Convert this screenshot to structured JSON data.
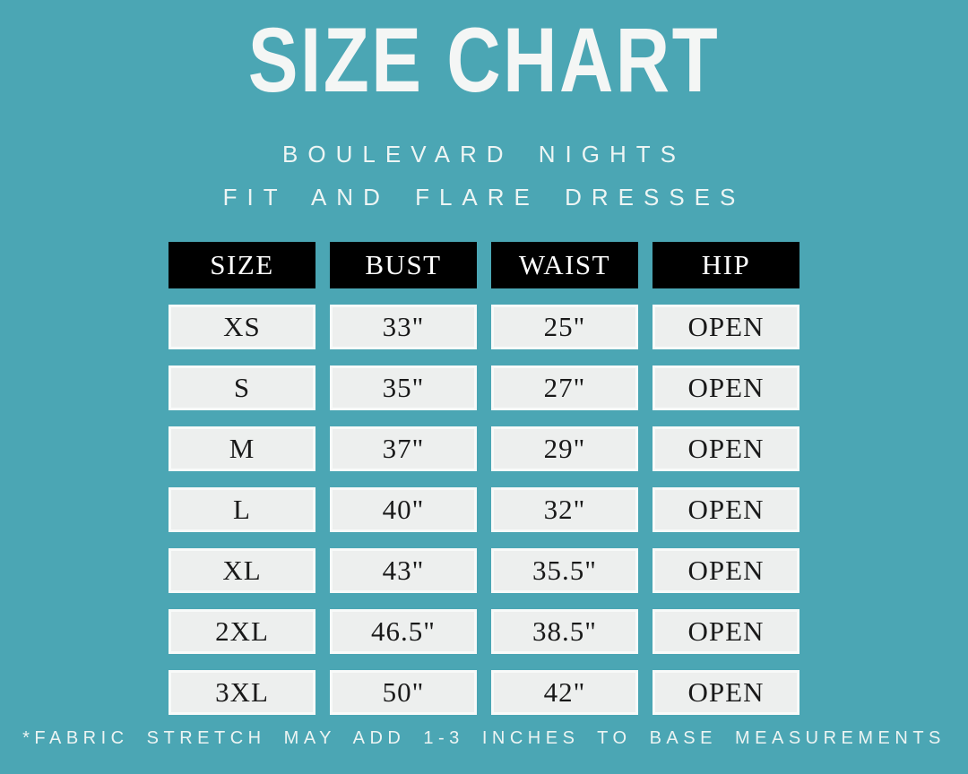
{
  "header": {
    "title": "SIZE CHART",
    "subtitle_line1": "BOULEVARD NIGHTS",
    "subtitle_line2": "FIT AND FLARE DRESSES"
  },
  "chart_data": {
    "type": "table",
    "title": "SIZE CHART",
    "subtitle": "BOULEVARD NIGHTS FIT AND FLARE DRESSES",
    "columns": [
      "SIZE",
      "BUST",
      "WAIST",
      "HIP"
    ],
    "rows": [
      [
        "XS",
        "33\"",
        "25\"",
        "OPEN"
      ],
      [
        "S",
        "35\"",
        "27\"",
        "OPEN"
      ],
      [
        "M",
        "37\"",
        "29\"",
        "OPEN"
      ],
      [
        "L",
        "40\"",
        "32\"",
        "OPEN"
      ],
      [
        "XL",
        "43\"",
        "35.5\"",
        "OPEN"
      ],
      [
        "2XL",
        "46.5\"",
        "38.5\"",
        "OPEN"
      ],
      [
        "3XL",
        "50\"",
        "42\"",
        "OPEN"
      ]
    ],
    "footnote": "*FABRIC STRETCH MAY ADD 1-3 INCHES TO BASE MEASUREMENTS"
  },
  "footer": {
    "note": "*FABRIC STRETCH MAY ADD 1-3 INCHES TO BASE MEASUREMENTS"
  },
  "colors": {
    "background": "#4ba6b4",
    "header_cell_bg": "#000000",
    "header_cell_text": "#ffffff",
    "data_cell_bg": "#edefee",
    "data_cell_border": "#f8faf9",
    "data_cell_text": "#191919",
    "title_text": "#f4f6f5"
  }
}
